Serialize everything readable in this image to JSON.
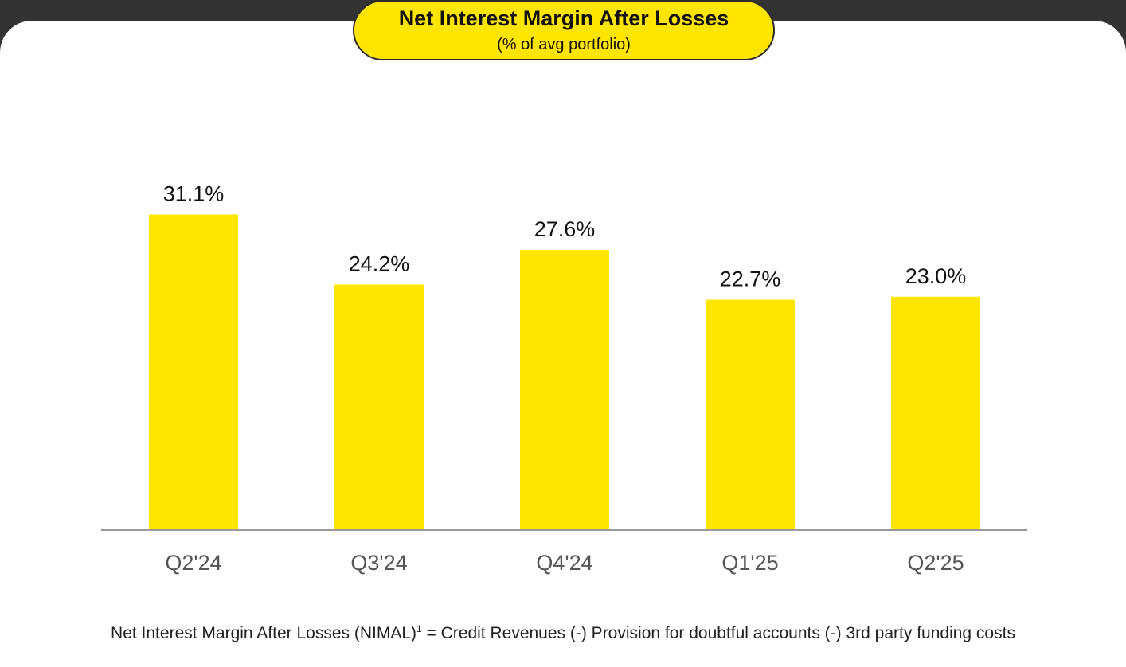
{
  "header": {
    "title": "Net Interest Margin After Losses",
    "subtitle": "(% of avg portfolio)"
  },
  "chart_data": {
    "type": "bar",
    "title": "Net Interest Margin After Losses",
    "subtitle": "(% of avg portfolio)",
    "categories": [
      "Q2'24",
      "Q3'24",
      "Q4'24",
      "Q1'25",
      "Q2'25"
    ],
    "values": [
      31.1,
      24.2,
      27.6,
      22.7,
      23.0
    ],
    "value_labels": [
      "31.1%",
      "24.2%",
      "27.6%",
      "22.7%",
      "23.0%"
    ],
    "xlabel": "",
    "ylabel": "",
    "ylim": [
      0,
      50
    ],
    "grid": false,
    "bar_color": "#FFE500",
    "axis_color": "#999999"
  },
  "footnote": {
    "lead": "Net Interest Margin After Losses (NIMAL)",
    "sup": "1",
    "definition": " =  Credit Revenues (-) Provision for doubtful accounts (-) 3rd party funding costs"
  },
  "colors": {
    "accent": "#FFE500",
    "background": "#FFFFFF",
    "frame": "#333333"
  }
}
